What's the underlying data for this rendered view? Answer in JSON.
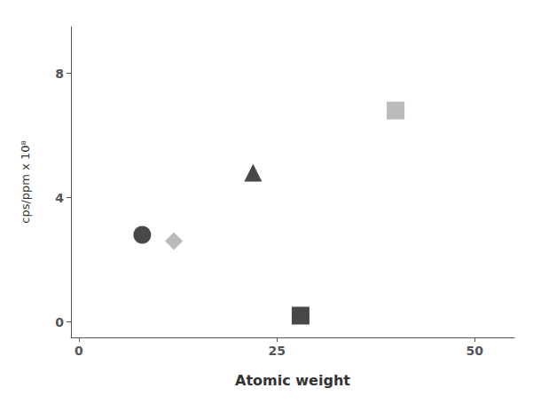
{
  "chart_data": {
    "type": "scatter",
    "xlabel": "Atomic weight",
    "ylabel": "cps/ppm x 10⁸",
    "series": [
      {
        "x": [
          8
        ],
        "values": [
          2.8
        ],
        "color": "#1a1a1a",
        "marker": "circle"
      },
      {
        "x": [
          12
        ],
        "values": [
          2.6
        ],
        "color": "#aaaaaa",
        "marker": "diamond"
      },
      {
        "x": [
          22
        ],
        "values": [
          4.8
        ],
        "color": "#1a1a1a",
        "marker": "triangle"
      },
      {
        "x": [
          28
        ],
        "values": [
          0.2
        ],
        "color": "#1a1a1a",
        "marker": "square"
      },
      {
        "x": [
          40
        ],
        "values": [
          6.8
        ],
        "color": "#aaaaaa",
        "marker": "square"
      }
    ],
    "xlim": [
      -1,
      55
    ],
    "ylim": [
      -0.5,
      9.5
    ],
    "xticks": [
      0,
      25,
      50
    ],
    "yticks": [
      0,
      4,
      8
    ],
    "grid": false
  }
}
